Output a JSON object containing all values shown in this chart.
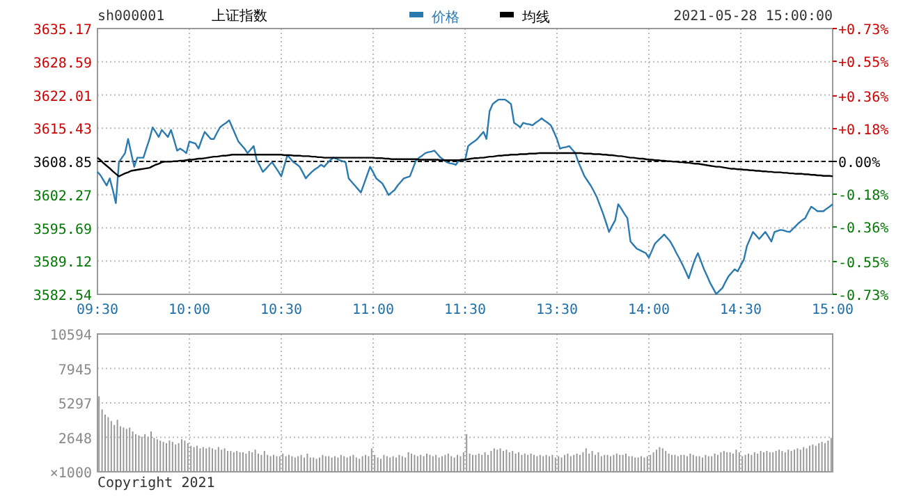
{
  "chart_data": [
    {
      "type": "line",
      "title": "上证指数",
      "annotations": [
        "sh000001",
        "2021-05-28 15:00:00"
      ],
      "legend": "top",
      "grid": true,
      "categories": [
        "09:30",
        null,
        null,
        null,
        null,
        null,
        null,
        null,
        null,
        null,
        null,
        null,
        null,
        null,
        null,
        null,
        null,
        null,
        null,
        null,
        null,
        null,
        null,
        null,
        null,
        null,
        null,
        null,
        null,
        null,
        "10:00",
        null,
        null,
        null,
        null,
        null,
        null,
        null,
        null,
        null,
        null,
        null,
        null,
        null,
        null,
        null,
        null,
        null,
        null,
        null,
        null,
        null,
        null,
        null,
        null,
        null,
        null,
        null,
        null,
        null,
        "10:30",
        null,
        null,
        null,
        null,
        null,
        null,
        null,
        null,
        null,
        null,
        null,
        null,
        null,
        null,
        null,
        null,
        null,
        null,
        null,
        null,
        null,
        null,
        null,
        null,
        null,
        null,
        null,
        null,
        null,
        "11:00",
        null,
        null,
        null,
        null,
        null,
        null,
        null,
        null,
        null,
        null,
        null,
        null,
        null,
        null,
        null,
        null,
        null,
        null,
        null,
        null,
        null,
        null,
        null,
        null,
        null,
        null,
        null,
        null,
        null,
        "11:30",
        null,
        null,
        null,
        null,
        null,
        null,
        null,
        null,
        null,
        null,
        null,
        null,
        null,
        null,
        null,
        null,
        null,
        null,
        null,
        null,
        null,
        null,
        null,
        null,
        null,
        null,
        null,
        null,
        null,
        "13:30",
        null,
        null,
        null,
        null,
        null,
        null,
        null,
        null,
        null,
        null,
        null,
        null,
        null,
        null,
        null,
        null,
        null,
        null,
        null,
        null,
        null,
        null,
        null,
        null,
        null,
        null,
        null,
        null,
        null,
        "14:00",
        null,
        null,
        null,
        null,
        null,
        null,
        null,
        null,
        null,
        null,
        null,
        null,
        null,
        null,
        null,
        null,
        null,
        null,
        null,
        null,
        null,
        null,
        null,
        null,
        null,
        null,
        null,
        null,
        null,
        "14:30",
        null,
        null,
        null,
        null,
        null,
        null,
        null,
        null,
        null,
        null,
        null,
        null,
        null,
        null,
        null,
        null,
        null,
        null,
        null,
        null,
        null,
        null,
        null,
        null,
        null,
        null,
        null,
        null,
        null,
        "15:00"
      ],
      "ylim": [
        3582.54,
        3635.17
      ],
      "yticks": [
        3582.54,
        3589.12,
        3595.69,
        3602.27,
        3608.85,
        3615.43,
        3622.01,
        3628.59,
        3635.17
      ],
      "y2lim": [
        -0.73,
        0.73
      ],
      "y2ticks": [
        {
          "value": -0.73,
          "label": "-0.73%"
        },
        {
          "value": -0.55,
          "label": "-0.55%"
        },
        {
          "value": -0.36,
          "label": "-0.36%"
        },
        {
          "value": -0.18,
          "label": "-0.18%"
        },
        {
          "value": 0,
          "label": "0.00%"
        },
        {
          "value": 0.18,
          "label": "+0.18%"
        },
        {
          "value": 0.36,
          "label": "+0.36%"
        },
        {
          "value": 0.55,
          "label": "+0.55%"
        },
        {
          "value": 0.73,
          "label": "+0.73%"
        }
      ],
      "ref_lines": [
        {
          "axis": "y",
          "value": 3608.85,
          "color": "#000000",
          "line_style": "dashed"
        }
      ],
      "series": [
        {
          "name": "价格",
          "color": "#2a7ab0",
          "values": [
            3606.8,
            3606.1,
            3605.1,
            3604.1,
            3605.5,
            3603.2,
            3600.6,
            3608.7,
            3609.6,
            3610.5,
            3613.3,
            3610.5,
            3607.8,
            3609.6,
            3609.6,
            3609.6,
            3611.5,
            3613.3,
            3615.6,
            3614.7,
            3613.7,
            3615.1,
            3614.4,
            3613.7,
            3615.1,
            3613.1,
            3611.0,
            3611.4,
            3611.0,
            3610.5,
            3612.8,
            3612.6,
            3612.4,
            3611.4,
            3613.1,
            3614.7,
            3614.0,
            3613.3,
            3613.3,
            3614.5,
            3615.6,
            3616.1,
            3616.5,
            3617.0,
            3615.6,
            3614.2,
            3612.8,
            3612.1,
            3611.4,
            3610.5,
            3611.2,
            3611.9,
            3609.1,
            3608.0,
            3606.8,
            3607.4,
            3608.1,
            3608.7,
            3607.8,
            3606.9,
            3605.9,
            3608.0,
            3610.1,
            3609.4,
            3608.7,
            3608.3,
            3607.8,
            3606.7,
            3605.5,
            3606.2,
            3606.8,
            3607.3,
            3607.7,
            3608.2,
            3607.8,
            3608.5,
            3609.1,
            3609.6,
            3609.4,
            3609.1,
            3608.9,
            3608.7,
            3605.5,
            3604.8,
            3604.1,
            3603.4,
            3602.7,
            3604.4,
            3606.1,
            3607.8,
            3606.7,
            3605.5,
            3605.0,
            3604.5,
            3603.4,
            3602.2,
            3602.7,
            3603.2,
            3604.1,
            3604.8,
            3605.5,
            3605.7,
            3605.9,
            3607.5,
            3609.1,
            3609.6,
            3610.0,
            3610.5,
            3610.7,
            3610.8,
            3611.0,
            3610.3,
            3609.6,
            3609.2,
            3608.7,
            3608.5,
            3608.4,
            3608.2,
            3609.1,
            3609.1,
            3609.1,
            3611.9,
            3612.4,
            3612.8,
            3613.3,
            3614.0,
            3614.7,
            3613.3,
            3618.8,
            3620.2,
            3620.7,
            3621.1,
            3621.1,
            3621.1,
            3620.7,
            3620.2,
            3616.5,
            3616.1,
            3615.6,
            3616.5,
            3616.3,
            3616.2,
            3616.0,
            3616.5,
            3616.9,
            3617.4,
            3616.9,
            3616.5,
            3616.0,
            3614.7,
            3613.3,
            3611.4,
            3611.6,
            3611.7,
            3611.9,
            3611.2,
            3610.5,
            3608.7,
            3607.3,
            3605.9,
            3605.0,
            3604.1,
            3603.0,
            3601.8,
            3600.2,
            3598.6,
            3596.8,
            3594.9,
            3596.1,
            3597.2,
            3600.4,
            3599.5,
            3598.5,
            3597.6,
            3593.0,
            3592.3,
            3591.6,
            3591.3,
            3591.0,
            3590.7,
            3589.8,
            3591.2,
            3592.6,
            3593.2,
            3593.8,
            3594.4,
            3593.7,
            3593.0,
            3591.9,
            3590.7,
            3589.6,
            3588.4,
            3587.1,
            3585.7,
            3587.6,
            3589.4,
            3590.7,
            3589.1,
            3587.5,
            3586.2,
            3584.8,
            3583.7,
            3582.6,
            3583.2,
            3583.8,
            3585.0,
            3586.1,
            3586.8,
            3587.5,
            3587.1,
            3588.3,
            3589.4,
            3592.1,
            3593.5,
            3594.9,
            3594.2,
            3593.5,
            3594.2,
            3594.9,
            3594.0,
            3593.0,
            3594.9,
            3595.1,
            3595.3,
            3595.2,
            3595.0,
            3594.9,
            3595.5,
            3596.1,
            3596.7,
            3597.2,
            3597.6,
            3598.8,
            3599.9,
            3599.5,
            3599.0,
            3599.0,
            3599.0,
            3599.5,
            3599.9,
            3600.4
          ]
        },
        {
          "name": "均线",
          "color": "#000000",
          "values": [
            3609.6,
            3609.1,
            3608.5,
            3608.0,
            3607.5,
            3606.9,
            3606.4,
            3605.9,
            3606.2,
            3606.5,
            3606.7,
            3607.0,
            3607.1,
            3607.2,
            3607.3,
            3607.4,
            3607.5,
            3607.6,
            3607.9,
            3608.2,
            3608.4,
            3608.7,
            3608.8,
            3608.8,
            3608.8,
            3608.9,
            3608.9,
            3609.0,
            3609.0,
            3609.1,
            3609.2,
            3609.2,
            3609.3,
            3609.4,
            3609.4,
            3609.5,
            3609.6,
            3609.7,
            3609.8,
            3609.8,
            3609.9,
            3610.0,
            3610.0,
            3610.1,
            3610.2,
            3610.2,
            3610.2,
            3610.2,
            3610.2,
            3610.2,
            3610.2,
            3610.2,
            3610.2,
            3610.2,
            3610.2,
            3610.2,
            3610.2,
            3610.2,
            3610.2,
            3610.2,
            3610.2,
            3610.1,
            3610.1,
            3610.1,
            3610.0,
            3610.0,
            3610.0,
            3609.9,
            3609.9,
            3609.9,
            3609.8,
            3609.8,
            3609.7,
            3609.7,
            3609.6,
            3609.6,
            3609.6,
            3609.6,
            3609.6,
            3609.6,
            3609.6,
            3609.6,
            3609.6,
            3609.6,
            3609.6,
            3609.6,
            3609.6,
            3609.6,
            3609.6,
            3609.6,
            3609.6,
            3609.5,
            3609.5,
            3609.5,
            3609.4,
            3609.4,
            3609.3,
            3609.3,
            3609.3,
            3609.3,
            3609.3,
            3609.3,
            3609.3,
            3609.3,
            3609.3,
            3609.2,
            3609.2,
            3609.2,
            3609.2,
            3609.2,
            3609.2,
            3609.2,
            3609.1,
            3609.1,
            3609.1,
            3609.1,
            3609.1,
            3609.1,
            3609.1,
            3609.2,
            3609.2,
            3609.3,
            3609.4,
            3609.5,
            3609.5,
            3609.6,
            3609.6,
            3609.7,
            3609.8,
            3609.8,
            3609.9,
            3610.0,
            3610.0,
            3610.1,
            3610.1,
            3610.2,
            3610.2,
            3610.2,
            3610.3,
            3610.3,
            3610.3,
            3610.4,
            3610.4,
            3610.4,
            3610.5,
            3610.5,
            3610.5,
            3610.5,
            3610.5,
            3610.5,
            3610.5,
            3610.5,
            3610.5,
            3610.5,
            3610.5,
            3610.5,
            3610.5,
            3610.5,
            3610.5,
            3610.4,
            3610.4,
            3610.4,
            3610.3,
            3610.3,
            3610.3,
            3610.2,
            3610.2,
            3610.1,
            3610.1,
            3610.0,
            3609.9,
            3609.9,
            3609.8,
            3609.7,
            3609.6,
            3609.6,
            3609.5,
            3609.4,
            3609.4,
            3609.3,
            3609.2,
            3609.2,
            3609.1,
            3609.1,
            3609.0,
            3609.0,
            3608.9,
            3608.9,
            3608.8,
            3608.8,
            3608.7,
            3608.7,
            3608.6,
            3608.6,
            3608.5,
            3608.4,
            3608.4,
            3608.3,
            3608.2,
            3608.1,
            3608.0,
            3607.9,
            3607.8,
            3607.8,
            3607.7,
            3607.6,
            3607.5,
            3607.4,
            3607.4,
            3607.3,
            3607.3,
            3607.2,
            3607.2,
            3607.1,
            3607.1,
            3607.0,
            3607.0,
            3606.9,
            3606.9,
            3606.8,
            3606.8,
            3606.7,
            3606.7,
            3606.7,
            3606.6,
            3606.6,
            3606.5,
            3606.5,
            3606.4,
            3606.4,
            3606.4,
            3606.3,
            3606.3,
            3606.2,
            3606.2,
            3606.1,
            3606.1,
            3606.0,
            3606.0,
            3606.0,
            3605.9
          ]
        }
      ]
    },
    {
      "type": "bar",
      "annotations": [
        "Copyright 2021"
      ],
      "grid": true,
      "tick_labels": "y",
      "color": "#999999",
      "ylabel": "×1000",
      "categories": [
        null,
        null,
        null,
        null,
        null,
        null,
        null,
        null,
        null,
        null,
        null,
        null,
        null,
        null,
        null,
        null,
        null,
        null,
        null,
        null,
        null,
        null,
        null,
        null,
        null,
        null,
        null,
        null,
        null,
        null,
        null,
        null,
        null,
        null,
        null,
        null,
        null,
        null,
        null,
        null,
        null,
        null,
        null,
        null,
        null,
        null,
        null,
        null,
        null,
        null,
        null,
        null,
        null,
        null,
        null,
        null,
        null,
        null,
        null,
        null,
        null,
        null,
        null,
        null,
        null,
        null,
        null,
        null,
        null,
        null,
        null,
        null,
        null,
        null,
        null,
        null,
        null,
        null,
        null,
        null,
        null,
        null,
        null,
        null,
        null,
        null,
        null,
        null,
        null,
        null,
        null,
        null,
        null,
        null,
        null,
        null,
        null,
        null,
        null,
        null,
        null,
        null,
        null,
        null,
        null,
        null,
        null,
        null,
        null,
        null,
        null,
        null,
        null,
        null,
        null,
        null,
        null,
        null,
        null,
        null,
        null,
        null,
        null,
        null,
        null,
        null,
        null,
        null,
        null,
        null,
        null,
        null,
        null,
        null,
        null,
        null,
        null,
        null,
        null,
        null,
        null,
        null,
        null,
        null,
        null,
        null,
        null,
        null,
        null,
        null,
        null,
        null,
        null,
        null,
        null,
        null,
        null,
        null,
        null,
        null,
        null,
        null,
        null,
        null,
        null,
        null,
        null,
        null,
        null,
        null,
        null,
        null,
        null,
        null,
        null,
        null,
        null,
        null,
        null,
        null,
        null,
        null,
        null,
        null,
        null,
        null,
        null,
        null,
        null,
        null,
        null,
        null,
        null,
        null,
        null,
        null,
        null,
        null,
        null,
        null,
        null,
        null,
        null,
        null,
        null,
        null,
        null,
        null,
        null,
        null,
        null,
        null,
        null,
        null,
        null,
        null,
        null,
        null,
        null,
        null,
        null,
        null,
        null,
        null,
        null,
        null,
        null,
        null,
        null,
        null,
        null,
        null,
        null,
        null,
        null,
        null,
        null,
        null,
        null,
        null,
        null
      ],
      "ylim": [
        0,
        10594
      ],
      "yticks": [
        2648,
        5297,
        7945,
        10594
      ],
      "values": [
        null,
        5800,
        4800,
        4400,
        4200,
        3900,
        3600,
        4000,
        3500,
        3400,
        3300,
        3400,
        3100,
        2900,
        2800,
        2700,
        2900,
        2700,
        3100,
        2600,
        2500,
        2400,
        2300,
        2200,
        2400,
        2300,
        2100,
        2200,
        2500,
        2400,
        2200,
        2000,
        1900,
        2000,
        1800,
        1900,
        1800,
        1900,
        1800,
        1700,
        1900,
        1700,
        1800,
        1600,
        1600,
        1500,
        1600,
        1500,
        1500,
        1400,
        1600,
        1500,
        1700,
        1400,
        1300,
        1600,
        1300,
        1200,
        1300,
        1200,
        1200,
        1400,
        1200,
        1300,
        1200,
        1100,
        1200,
        1300,
        1100,
        1400,
        1100,
        1100,
        1000,
        1100,
        1300,
        1200,
        1200,
        1100,
        1200,
        1100,
        1300,
        1200,
        1100,
        1200,
        1300,
        1100,
        1000,
        1200,
        1300,
        1200,
        1800,
        1300,
        1100,
        1000,
        1300,
        1200,
        1100,
        1200,
        1100,
        1300,
        1200,
        1100,
        1500,
        1400,
        1300,
        1200,
        1300,
        1200,
        1400,
        1300,
        1200,
        1300,
        1100,
        1200,
        1300,
        1400,
        1200,
        1100,
        1300,
        1200,
        1500,
        2900,
        1400,
        1300,
        1300,
        1400,
        1300,
        1500,
        1300,
        1600,
        1800,
        1700,
        1800,
        1600,
        1700,
        1500,
        1600,
        1400,
        1500,
        1300,
        1400,
        1300,
        1400,
        1300,
        1200,
        1300,
        1200,
        1300,
        1200,
        1300,
        1100,
        1200,
        1100,
        1300,
        1400,
        1200,
        1300,
        1400,
        1300,
        1500,
        1800,
        1400,
        1600,
        1300,
        1500,
        1200,
        1300,
        1300,
        1200,
        1300,
        1400,
        1300,
        1300,
        1400,
        1200,
        1200,
        1100,
        1100,
        1200,
        1100,
        1200,
        1300,
        1500,
        1700,
        1900,
        1800,
        1600,
        1400,
        1300,
        1300,
        1200,
        1300,
        1300,
        1200,
        1400,
        1300,
        1200,
        1200,
        1100,
        1300,
        1200,
        1200,
        1400,
        1300,
        1500,
        1600,
        1500,
        1500,
        1400,
        1700,
        1500,
        1200,
        1300,
        1400,
        1300,
        1500,
        1400,
        1600,
        1500,
        1600,
        1500,
        1500,
        1600,
        1700,
        1600,
        1500,
        1700,
        1600,
        1700,
        1800,
        1700,
        1900,
        1800,
        2000,
        2100,
        2000,
        2200,
        2300,
        2200,
        2400,
        2600
      ]
    }
  ]
}
